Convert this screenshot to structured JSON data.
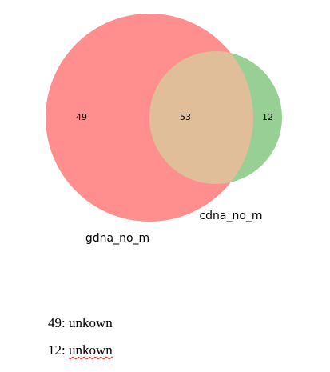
{
  "venn": {
    "sets": [
      {
        "name": "gdna_no_m",
        "only_count": "49",
        "color": "#ff8f8f"
      },
      {
        "name": "cdna_no_m",
        "only_count": "12",
        "color": "#97cf95"
      }
    ],
    "intersection_count": "53",
    "intersection_color": "#dfbe99"
  },
  "notes": [
    {
      "key": "49",
      "value": "unkown",
      "misspelled": false
    },
    {
      "key": "12",
      "value": "unkown",
      "misspelled": true
    }
  ]
}
